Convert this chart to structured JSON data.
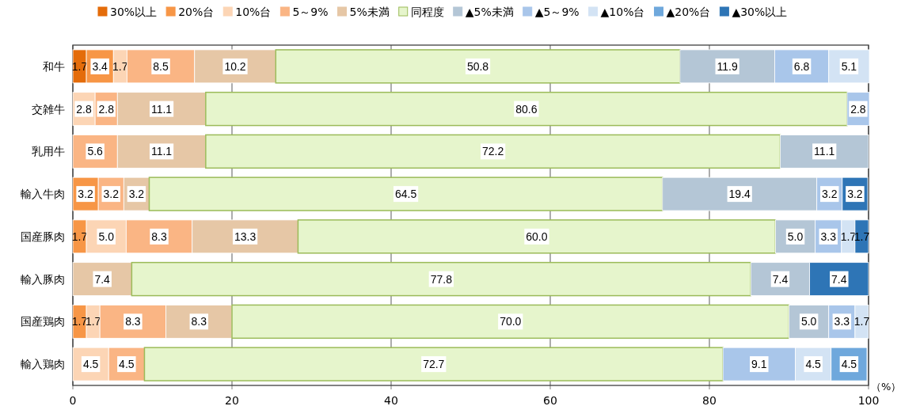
{
  "chart_data": {
    "type": "bar",
    "orientation": "horizontal",
    "stacked": true,
    "grid": "x",
    "legend": "top",
    "categories": [
      "和牛",
      "交雑牛",
      "乳用牛",
      "輸入牛肉",
      "国産豚肉",
      "輸入豚肉",
      "国産鶏肉",
      "輸入鶏肉"
    ],
    "xlim": [
      0,
      100
    ],
    "xticks": [
      0,
      20,
      40,
      60,
      80,
      100
    ],
    "annotations": [
      "（%）"
    ],
    "series": [
      {
        "name": "30%以上",
        "color": "#e46c0a",
        "values": [
          1.7,
          null,
          null,
          null,
          null,
          null,
          null,
          null
        ],
        "value_labels": [
          "1.7",
          null,
          null,
          null,
          null,
          null,
          null,
          null
        ]
      },
      {
        "name": "20%台",
        "color": "#f79646",
        "values": [
          3.4,
          null,
          null,
          3.2,
          1.7,
          null,
          1.7,
          null
        ],
        "value_labels": [
          "3.4",
          null,
          null,
          "3.2",
          "1.7",
          null,
          "1.7",
          null
        ]
      },
      {
        "name": "10%台",
        "color": "#fcd5b5",
        "values": [
          1.7,
          2.8,
          null,
          null,
          5.0,
          null,
          1.7,
          4.5
        ],
        "value_labels": [
          "1.7",
          "2.8",
          null,
          null,
          "5.0",
          null,
          "1.7",
          "4.5"
        ]
      },
      {
        "name": "5～9%",
        "color": "#fab584",
        "values": [
          8.5,
          2.8,
          5.6,
          3.2,
          8.3,
          null,
          8.3,
          4.5
        ],
        "value_labels": [
          "8.5",
          "2.8",
          "5.6",
          "3.2",
          "8.3",
          null,
          "8.3",
          "4.5"
        ]
      },
      {
        "name": "5%未満",
        "color": "#e6c7a6",
        "values": [
          10.2,
          11.1,
          11.1,
          3.2,
          13.3,
          7.4,
          8.3,
          null
        ],
        "value_labels": [
          "10.2",
          "11.1",
          "11.1",
          "3.2",
          "13.3",
          "7.4",
          "8.3",
          null
        ]
      },
      {
        "name": "同程度",
        "color": "#e6f5cc",
        "values": [
          50.8,
          80.6,
          72.2,
          64.5,
          60.0,
          77.8,
          70.0,
          72.7
        ],
        "value_labels": [
          "50.8",
          "80.6",
          "72.2",
          "64.5",
          "60.0",
          "77.8",
          "70.0",
          "72.7"
        ]
      },
      {
        "name": "▲5%未満",
        "color": "#b4c6d6",
        "values": [
          11.9,
          null,
          11.1,
          19.4,
          5.0,
          7.4,
          5.0,
          null
        ],
        "value_labels": [
          "11.9",
          null,
          "11.1",
          "19.4",
          "5.0",
          "7.4",
          "5.0",
          null
        ]
      },
      {
        "name": "▲5～9%",
        "color": "#a9c6ea",
        "values": [
          6.8,
          2.8,
          null,
          3.2,
          3.3,
          null,
          3.3,
          9.1
        ],
        "value_labels": [
          "6.8",
          "2.8",
          null,
          "3.2",
          "3.3",
          null,
          "3.3",
          "9.1"
        ]
      },
      {
        "name": "▲10%台",
        "color": "#d3e3f4",
        "values": [
          5.1,
          null,
          null,
          null,
          1.7,
          null,
          1.7,
          4.5
        ],
        "value_labels": [
          "5.1",
          null,
          null,
          null,
          "1.7",
          null,
          "1.7",
          "4.5"
        ]
      },
      {
        "name": "▲20%台",
        "color": "#6fa8dc",
        "values": [
          null,
          null,
          null,
          null,
          null,
          null,
          null,
          4.5
        ],
        "value_labels": [
          null,
          null,
          null,
          null,
          null,
          null,
          null,
          "4.5"
        ]
      },
      {
        "name": "▲30%以上",
        "color": "#2e75b6",
        "values": [
          null,
          null,
          null,
          3.2,
          1.7,
          7.4,
          null,
          null
        ],
        "value_labels": [
          null,
          null,
          null,
          "3.2",
          "1.7",
          "7.4",
          null,
          null
        ]
      }
    ]
  }
}
